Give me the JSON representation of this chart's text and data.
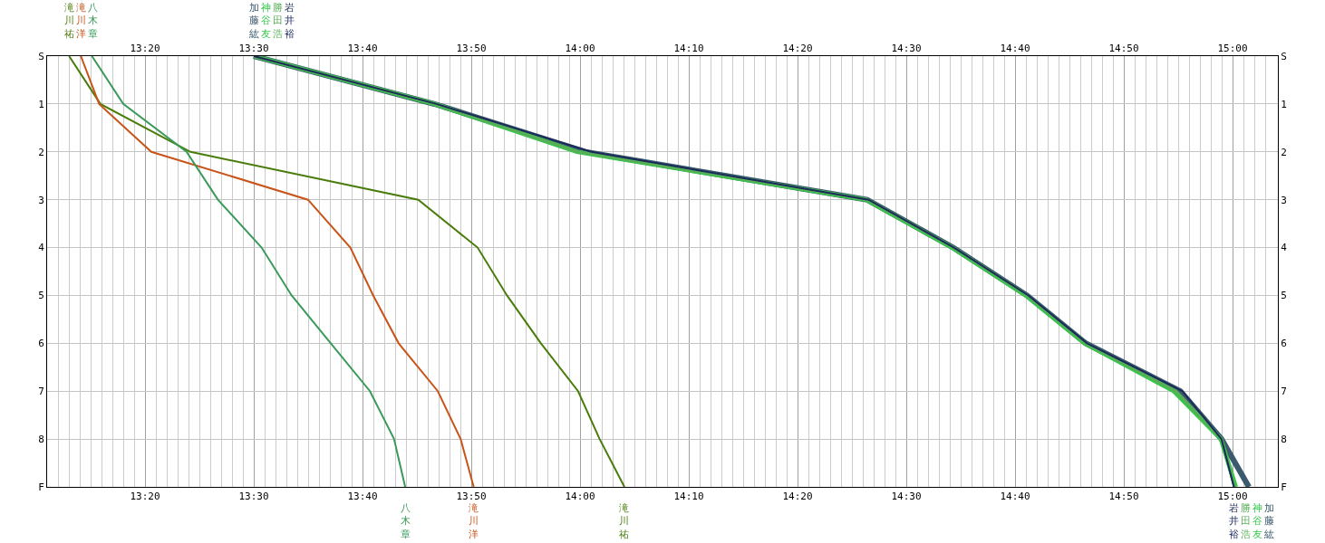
{
  "chart_data": {
    "type": "line",
    "orientation": "horizontal",
    "grid": true,
    "categories": [
      "S",
      "1",
      "2",
      "3",
      "4",
      "5",
      "6",
      "7",
      "8",
      "F"
    ],
    "y2_categories": [
      "S",
      "1",
      "2",
      "3",
      "4",
      "5",
      "6",
      "7",
      "8",
      "F"
    ],
    "xlim": [
      13.1833,
      15.0694
    ],
    "xticks": [
      {
        "value": 13.2,
        "label": null
      },
      {
        "value": 13.2167,
        "label": null
      },
      {
        "value": 13.2333,
        "label": null
      },
      {
        "value": 13.25,
        "label": null
      },
      {
        "value": 13.2667,
        "label": null
      },
      {
        "value": 13.2833,
        "label": null
      },
      {
        "value": 13.3,
        "label": null
      },
      {
        "value": 13.3167,
        "label": null
      },
      {
        "value": 13.3333,
        "label": "13:20"
      },
      {
        "value": 13.35,
        "label": null
      },
      {
        "value": 13.3667,
        "label": null
      },
      {
        "value": 13.3833,
        "label": null
      },
      {
        "value": 13.4,
        "label": null
      },
      {
        "value": 13.4167,
        "label": null
      },
      {
        "value": 13.4333,
        "label": null
      },
      {
        "value": 13.45,
        "label": null
      },
      {
        "value": 13.4667,
        "label": null
      },
      {
        "value": 13.4833,
        "label": null
      },
      {
        "value": 13.5,
        "label": "13:30"
      },
      {
        "value": 13.5167,
        "label": null
      },
      {
        "value": 13.5333,
        "label": null
      },
      {
        "value": 13.55,
        "label": null
      },
      {
        "value": 13.5667,
        "label": null
      },
      {
        "value": 13.5833,
        "label": null
      },
      {
        "value": 13.6,
        "label": null
      },
      {
        "value": 13.6167,
        "label": null
      },
      {
        "value": 13.6333,
        "label": null
      },
      {
        "value": 13.65,
        "label": null
      },
      {
        "value": 13.6667,
        "label": "13:40"
      },
      {
        "value": 13.6833,
        "label": null
      },
      {
        "value": 13.7,
        "label": null
      },
      {
        "value": 13.7167,
        "label": null
      },
      {
        "value": 13.7333,
        "label": null
      },
      {
        "value": 13.75,
        "label": null
      },
      {
        "value": 13.7667,
        "label": null
      },
      {
        "value": 13.7833,
        "label": null
      },
      {
        "value": 13.8,
        "label": null
      },
      {
        "value": 13.8167,
        "label": null
      },
      {
        "value": 13.8333,
        "label": "13:50"
      },
      {
        "value": 13.85,
        "label": null
      },
      {
        "value": 13.8667,
        "label": null
      },
      {
        "value": 13.8833,
        "label": null
      },
      {
        "value": 13.9,
        "label": null
      },
      {
        "value": 13.9167,
        "label": null
      },
      {
        "value": 13.9333,
        "label": null
      },
      {
        "value": 13.95,
        "label": null
      },
      {
        "value": 13.9667,
        "label": null
      },
      {
        "value": 13.9833,
        "label": null
      },
      {
        "value": 14,
        "label": "14:00"
      },
      {
        "value": 14.0167,
        "label": null
      },
      {
        "value": 14.0333,
        "label": null
      },
      {
        "value": 14.05,
        "label": null
      },
      {
        "value": 14.0667,
        "label": null
      },
      {
        "value": 14.0833,
        "label": null
      },
      {
        "value": 14.1,
        "label": null
      },
      {
        "value": 14.1167,
        "label": null
      },
      {
        "value": 14.1333,
        "label": null
      },
      {
        "value": 14.15,
        "label": null
      },
      {
        "value": 14.1667,
        "label": "14:10"
      },
      {
        "value": 14.1833,
        "label": null
      },
      {
        "value": 14.2,
        "label": null
      },
      {
        "value": 14.2167,
        "label": null
      },
      {
        "value": 14.2333,
        "label": null
      },
      {
        "value": 14.25,
        "label": null
      },
      {
        "value": 14.2667,
        "label": null
      },
      {
        "value": 14.2833,
        "label": null
      },
      {
        "value": 14.3,
        "label": null
      },
      {
        "value": 14.3167,
        "label": null
      },
      {
        "value": 14.3333,
        "label": "14:20"
      },
      {
        "value": 14.35,
        "label": null
      },
      {
        "value": 14.3667,
        "label": null
      },
      {
        "value": 14.3833,
        "label": null
      },
      {
        "value": 14.4,
        "label": null
      },
      {
        "value": 14.4167,
        "label": null
      },
      {
        "value": 14.4333,
        "label": null
      },
      {
        "value": 14.45,
        "label": null
      },
      {
        "value": 14.4667,
        "label": null
      },
      {
        "value": 14.4833,
        "label": null
      },
      {
        "value": 14.5,
        "label": "14:30"
      },
      {
        "value": 14.5167,
        "label": null
      },
      {
        "value": 14.5333,
        "label": null
      },
      {
        "value": 14.55,
        "label": null
      },
      {
        "value": 14.5667,
        "label": null
      },
      {
        "value": 14.5833,
        "label": null
      },
      {
        "value": 14.6,
        "label": null
      },
      {
        "value": 14.6167,
        "label": null
      },
      {
        "value": 14.6333,
        "label": null
      },
      {
        "value": 14.65,
        "label": null
      },
      {
        "value": 14.6667,
        "label": "14:40"
      },
      {
        "value": 14.6833,
        "label": null
      },
      {
        "value": 14.7,
        "label": null
      },
      {
        "value": 14.7167,
        "label": null
      },
      {
        "value": 14.7333,
        "label": null
      },
      {
        "value": 14.75,
        "label": null
      },
      {
        "value": 14.7667,
        "label": null
      },
      {
        "value": 14.7833,
        "label": null
      },
      {
        "value": 14.8,
        "label": null
      },
      {
        "value": 14.8167,
        "label": null
      },
      {
        "value": 14.8333,
        "label": "14:50"
      },
      {
        "value": 14.85,
        "label": null
      },
      {
        "value": 14.8667,
        "label": null
      },
      {
        "value": 14.8833,
        "label": null
      },
      {
        "value": 14.9,
        "label": null
      },
      {
        "value": 14.9167,
        "label": null
      },
      {
        "value": 14.9333,
        "label": null
      },
      {
        "value": 14.95,
        "label": null
      },
      {
        "value": 14.9667,
        "label": null
      },
      {
        "value": 14.9833,
        "label": null
      },
      {
        "value": 15,
        "label": "15:00"
      },
      {
        "value": 15.0167,
        "label": null
      },
      {
        "value": 15.0333,
        "label": null
      },
      {
        "value": 15.05,
        "label": null
      }
    ],
    "x2lim": [
      13.1833,
      15.0694
    ],
    "x2ticks": [
      {
        "value": 13.3333,
        "label": "13:20"
      },
      {
        "value": 13.5,
        "label": "13:30"
      },
      {
        "value": 13.6667,
        "label": "13:40"
      },
      {
        "value": 13.8333,
        "label": "13:50"
      },
      {
        "value": 14,
        "label": "14:00"
      },
      {
        "value": 14.1667,
        "label": "14:10"
      },
      {
        "value": 14.3333,
        "label": "14:20"
      },
      {
        "value": 14.5,
        "label": "14:30"
      },
      {
        "value": 14.6667,
        "label": "14:40"
      },
      {
        "value": 14.8333,
        "label": "14:50"
      },
      {
        "value": 15,
        "label": "15:00"
      }
    ],
    "series": [
      {
        "name": "滝川祐",
        "color": "#4a7c0c",
        "values": [
          13.217,
          13.265,
          13.403,
          13.752,
          13.843,
          13.888,
          13.94,
          13.997,
          14.03,
          14.068
        ]
      },
      {
        "name": "滝川洋",
        "color": "#c8541a",
        "values": [
          13.235,
          13.263,
          13.343,
          13.583,
          13.648,
          13.683,
          13.722,
          13.782,
          13.817,
          13.837
        ]
      },
      {
        "name": "八木章",
        "color": "#3a9a5a",
        "values": [
          13.252,
          13.3,
          13.397,
          13.445,
          13.512,
          13.558,
          13.618,
          13.678,
          13.715,
          13.732
        ]
      },
      {
        "name": "加藤紘",
        "color": "#3c5a6e",
        "values": [
          13.5,
          13.777,
          14.008,
          14.44,
          14.572,
          14.685,
          14.775,
          14.92,
          14.983,
          15.025
        ]
      },
      {
        "name": "神谷友",
        "color": "#34c84a",
        "values": [
          13.5,
          13.777,
          13.995,
          14.438,
          14.57,
          14.683,
          14.773,
          14.91,
          14.982,
          15.005
        ]
      },
      {
        "name": "勝田浩",
        "color": "#56b056",
        "values": [
          13.5,
          13.778,
          13.997,
          14.44,
          14.572,
          14.685,
          14.775,
          14.913,
          14.983,
          15.003
        ]
      },
      {
        "name": "岩井裕",
        "color": "#1a2a5a",
        "values": [
          13.5,
          13.78,
          14.017,
          14.442,
          14.573,
          14.687,
          14.777,
          14.923,
          14.983,
          15.002
        ]
      }
    ]
  }
}
